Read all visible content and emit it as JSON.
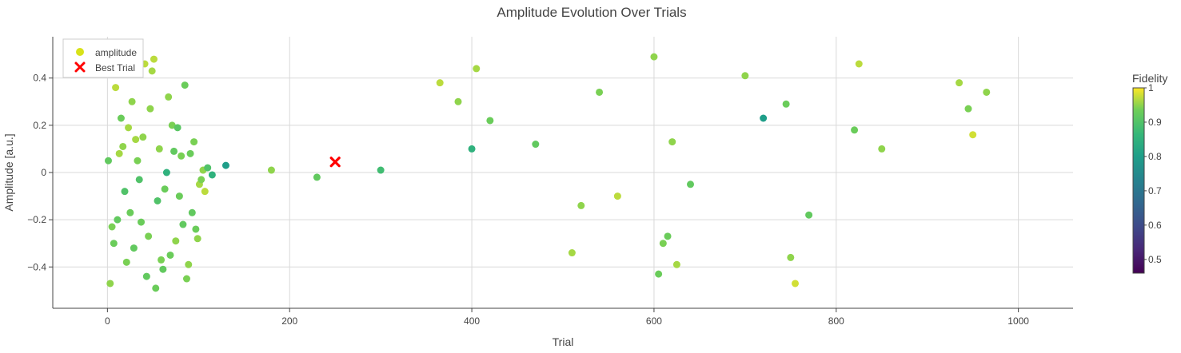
{
  "chart_data": {
    "type": "scatter",
    "title": "Amplitude Evolution Over Trials",
    "xlabel": "Trial",
    "ylabel": "Amplitude [a.u.]",
    "xlim": [
      -60,
      1060
    ],
    "ylim": [
      -0.575,
      0.575
    ],
    "x_ticks": [
      0,
      200,
      400,
      600,
      800,
      1000
    ],
    "x_tick_labels": [
      "0",
      "200",
      "400",
      "600",
      "800",
      "1000"
    ],
    "y_ticks": [
      -0.4,
      -0.2,
      0,
      0.2,
      0.4
    ],
    "y_tick_labels": [
      "−0.4",
      "−0.2",
      "0",
      "0.2",
      "0.4"
    ],
    "grid": true,
    "legend_position": "top-left",
    "colorbar": {
      "title": "Fidelity",
      "range": [
        0.46,
        1.0
      ],
      "ticks": [
        0.5,
        0.6,
        0.7,
        0.8,
        0.9,
        1
      ],
      "tick_labels": [
        "0.5",
        "0.6",
        "0.7",
        "0.8",
        "0.9",
        "1"
      ],
      "colorscale": "viridis"
    },
    "series": [
      {
        "name": "amplitude",
        "marker": "circle",
        "color_by": "fidelity",
        "x": [
          1,
          3,
          5,
          7,
          9,
          11,
          13,
          15,
          17,
          19,
          21,
          23,
          25,
          27,
          29,
          31,
          33,
          35,
          37,
          39,
          41,
          43,
          45,
          47,
          49,
          51,
          53,
          55,
          57,
          59,
          61,
          63,
          65,
          67,
          69,
          71,
          73,
          75,
          77,
          79,
          81,
          83,
          85,
          87,
          89,
          91,
          93,
          95,
          97,
          99,
          101,
          103,
          105,
          107,
          110,
          115,
          130,
          180,
          230,
          300,
          365,
          385,
          400,
          405,
          420,
          470,
          510,
          520,
          540,
          560,
          600,
          605,
          610,
          615,
          620,
          625,
          640,
          700,
          720,
          745,
          750,
          755,
          770,
          820,
          825,
          850,
          935,
          945,
          950,
          965
        ],
        "y": [
          0.05,
          -0.47,
          -0.23,
          -0.3,
          0.36,
          -0.2,
          0.08,
          0.23,
          0.11,
          -0.08,
          -0.38,
          0.19,
          -0.17,
          0.3,
          -0.32,
          0.14,
          0.05,
          -0.03,
          -0.21,
          0.15,
          0.46,
          -0.44,
          -0.27,
          0.27,
          0.43,
          0.48,
          -0.49,
          -0.12,
          0.1,
          -0.37,
          -0.41,
          -0.07,
          0.0,
          0.32,
          -0.35,
          0.2,
          0.09,
          -0.29,
          0.19,
          -0.1,
          0.07,
          -0.22,
          0.37,
          -0.45,
          -0.39,
          0.08,
          -0.17,
          0.13,
          -0.24,
          -0.28,
          -0.05,
          -0.03,
          0.01,
          -0.08,
          0.02,
          -0.01,
          0.03,
          0.01,
          -0.02,
          0.01,
          0.38,
          0.3,
          0.1,
          0.44,
          0.22,
          0.12,
          -0.34,
          -0.14,
          0.34,
          -0.1,
          0.49,
          -0.43,
          -0.3,
          -0.27,
          0.13,
          -0.39,
          -0.05,
          0.41,
          0.23,
          0.29,
          -0.36,
          -0.47,
          -0.18,
          0.18,
          0.46,
          0.1,
          0.38,
          0.27,
          0.16,
          0.34
        ],
        "fidelity": [
          0.92,
          0.95,
          0.94,
          0.93,
          0.97,
          0.92,
          0.96,
          0.93,
          0.95,
          0.9,
          0.94,
          0.96,
          0.93,
          0.95,
          0.92,
          0.96,
          0.94,
          0.9,
          0.93,
          0.95,
          0.97,
          0.92,
          0.94,
          0.95,
          0.96,
          0.97,
          0.93,
          0.9,
          0.95,
          0.94,
          0.92,
          0.93,
          0.85,
          0.95,
          0.93,
          0.94,
          0.92,
          0.95,
          0.91,
          0.93,
          0.94,
          0.92,
          0.93,
          0.94,
          0.95,
          0.93,
          0.92,
          0.94,
          0.93,
          0.95,
          0.96,
          0.94,
          0.95,
          0.97,
          0.9,
          0.85,
          0.8,
          0.95,
          0.92,
          0.88,
          0.97,
          0.95,
          0.85,
          0.96,
          0.93,
          0.92,
          0.96,
          0.95,
          0.94,
          0.97,
          0.95,
          0.93,
          0.94,
          0.93,
          0.95,
          0.96,
          0.92,
          0.95,
          0.8,
          0.93,
          0.95,
          0.98,
          0.92,
          0.93,
          0.97,
          0.95,
          0.96,
          0.94,
          0.98,
          0.95
        ]
      },
      {
        "name": "Best Trial",
        "marker": "x",
        "color": "#ff0000",
        "x": [
          250
        ],
        "y": [
          0.045
        ]
      }
    ]
  }
}
